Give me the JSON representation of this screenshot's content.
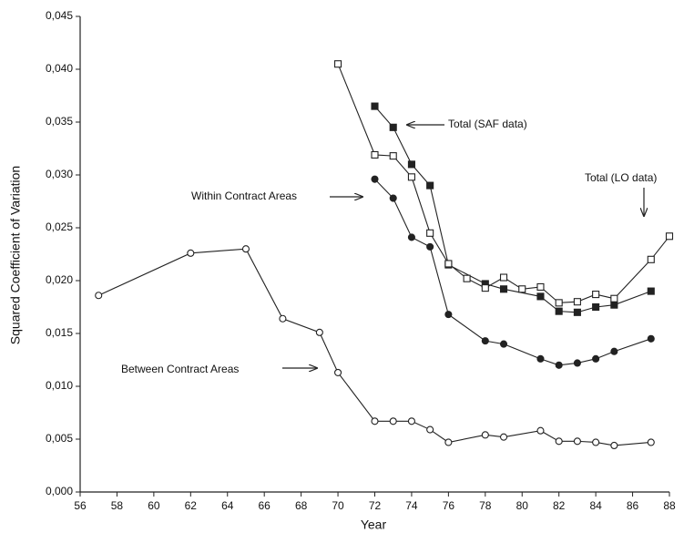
{
  "chart_data": {
    "type": "line",
    "x_label": "Year",
    "y_label": "Squared Coefficient of Variation",
    "xlim": [
      56,
      88
    ],
    "xticks": [
      56,
      58,
      60,
      62,
      64,
      66,
      68,
      70,
      72,
      74,
      76,
      78,
      80,
      82,
      84,
      86,
      88
    ],
    "ylim": [
      0,
      0.045
    ],
    "yticks": [
      {
        "value": 0,
        "label": "0,000"
      },
      {
        "value": 0.005,
        "label": "0,005"
      },
      {
        "value": 0.01,
        "label": "0,010"
      },
      {
        "value": 0.015,
        "label": "0,015"
      },
      {
        "value": 0.02,
        "label": "0,020"
      },
      {
        "value": 0.025,
        "label": "0,025"
      },
      {
        "value": 0.03,
        "label": "0,030"
      },
      {
        "value": 0.035,
        "label": "0,035"
      },
      {
        "value": 0.04,
        "label": "0,040"
      },
      {
        "value": 0.045,
        "label": "0,045"
      }
    ],
    "series": [
      {
        "name": "Between Contract Areas",
        "color": "#222222",
        "marker": "circle-open",
        "x": [
          57,
          62,
          65,
          67,
          69,
          70,
          72,
          73,
          74,
          75,
          76,
          78,
          79,
          81,
          82,
          83,
          84,
          85,
          87
        ],
        "values": [
          0.0186,
          0.0226,
          0.023,
          0.0164,
          0.0151,
          0.0113,
          0.0067,
          0.0067,
          0.0067,
          0.0059,
          0.0047,
          0.0054,
          0.0052,
          0.0058,
          0.0048,
          0.0048,
          0.0047,
          0.0044,
          0.0047
        ]
      },
      {
        "name": "Within Contract Areas",
        "color": "#222222",
        "marker": "circle-filled",
        "x": [
          72,
          73,
          74,
          75,
          76,
          78,
          79,
          81,
          82,
          83,
          84,
          85,
          87
        ],
        "values": [
          0.0296,
          0.0278,
          0.0241,
          0.0232,
          0.0168,
          0.0143,
          0.014,
          0.0126,
          0.012,
          0.0122,
          0.0126,
          0.0133,
          0.0145
        ]
      },
      {
        "name": "Total (SAF data)",
        "color": "#222222",
        "marker": "square-filled",
        "x": [
          72,
          73,
          74,
          75,
          76,
          78,
          79,
          81,
          82,
          83,
          84,
          85,
          87
        ],
        "values": [
          0.0365,
          0.0345,
          0.031,
          0.029,
          0.0215,
          0.0197,
          0.0192,
          0.0185,
          0.0171,
          0.017,
          0.0175,
          0.0177,
          0.019
        ]
      },
      {
        "name": "Total (LO data)",
        "color": "#222222",
        "marker": "square-open",
        "x": [
          70,
          72,
          73,
          74,
          75,
          76,
          77,
          78,
          79,
          80,
          81,
          82,
          83,
          84,
          85,
          87,
          88
        ],
        "values": [
          0.0405,
          0.0319,
          0.0318,
          0.0298,
          0.0245,
          0.0216,
          0.0202,
          0.0193,
          0.0203,
          0.0192,
          0.0194,
          0.0179,
          0.018,
          0.0187,
          0.0183,
          0.022,
          0.0242
        ]
      }
    ]
  }
}
